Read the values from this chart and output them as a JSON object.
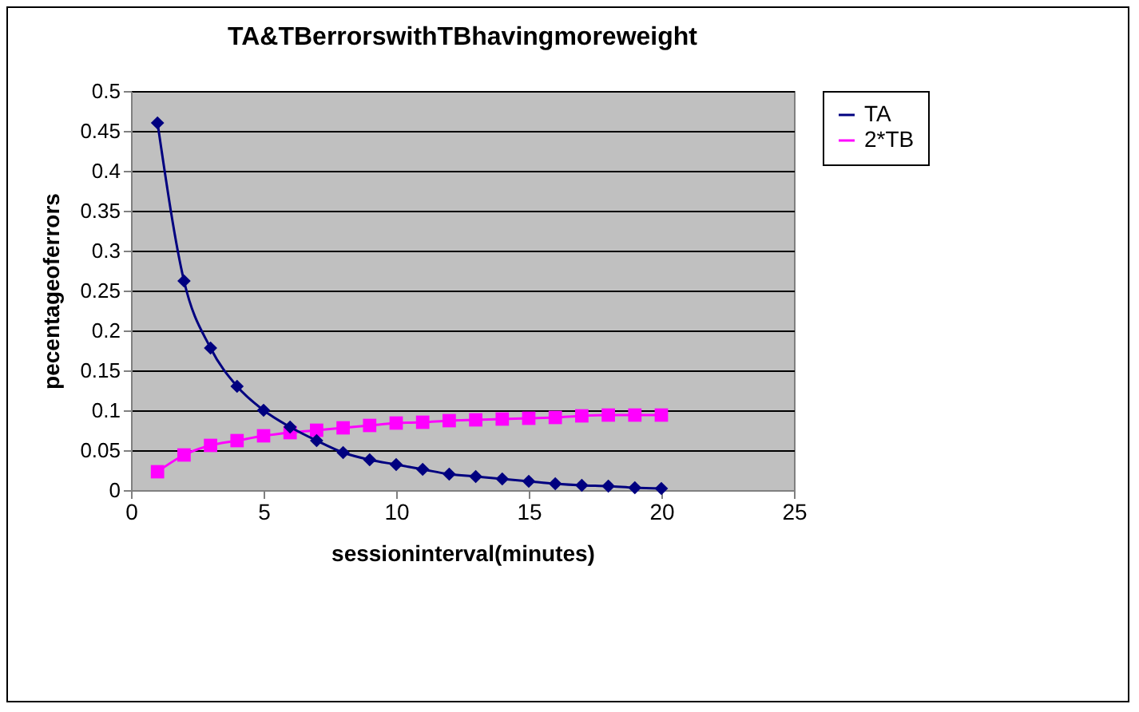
{
  "chart_data": {
    "type": "line",
    "title": "TA&TBerrorswithTBhavingmoreweight",
    "xlabel": "sessioninterval(minutes)",
    "ylabel": "pecentageoferrors",
    "x": [
      1,
      2,
      3,
      4,
      5,
      6,
      7,
      8,
      9,
      10,
      11,
      12,
      13,
      14,
      15,
      16,
      17,
      18,
      19,
      20
    ],
    "series": [
      {
        "name": "TA",
        "color": "#000080",
        "marker": "diamond",
        "values": [
          0.46,
          0.262,
          0.178,
          0.13,
          0.1,
          0.079,
          0.062,
          0.047,
          0.038,
          0.032,
          0.026,
          0.02,
          0.017,
          0.014,
          0.011,
          0.008,
          0.006,
          0.005,
          0.003,
          0.002
        ]
      },
      {
        "name": "2*TB",
        "color": "#ff00ff",
        "marker": "square",
        "values": [
          0.023,
          0.044,
          0.056,
          0.062,
          0.068,
          0.072,
          0.075,
          0.078,
          0.081,
          0.084,
          0.085,
          0.087,
          0.088,
          0.089,
          0.09,
          0.091,
          0.093,
          0.094,
          0.094,
          0.094
        ]
      }
    ],
    "xlim": [
      0,
      25
    ],
    "xticks": [
      0,
      5,
      10,
      15,
      20,
      25
    ],
    "ylim": [
      0,
      0.5
    ],
    "yticks": [
      0,
      0.05,
      0.1,
      0.15,
      0.2,
      0.25,
      0.3,
      0.35,
      0.4,
      0.45,
      0.5
    ],
    "grid": "y",
    "legend": "right",
    "line_style": "solid"
  }
}
